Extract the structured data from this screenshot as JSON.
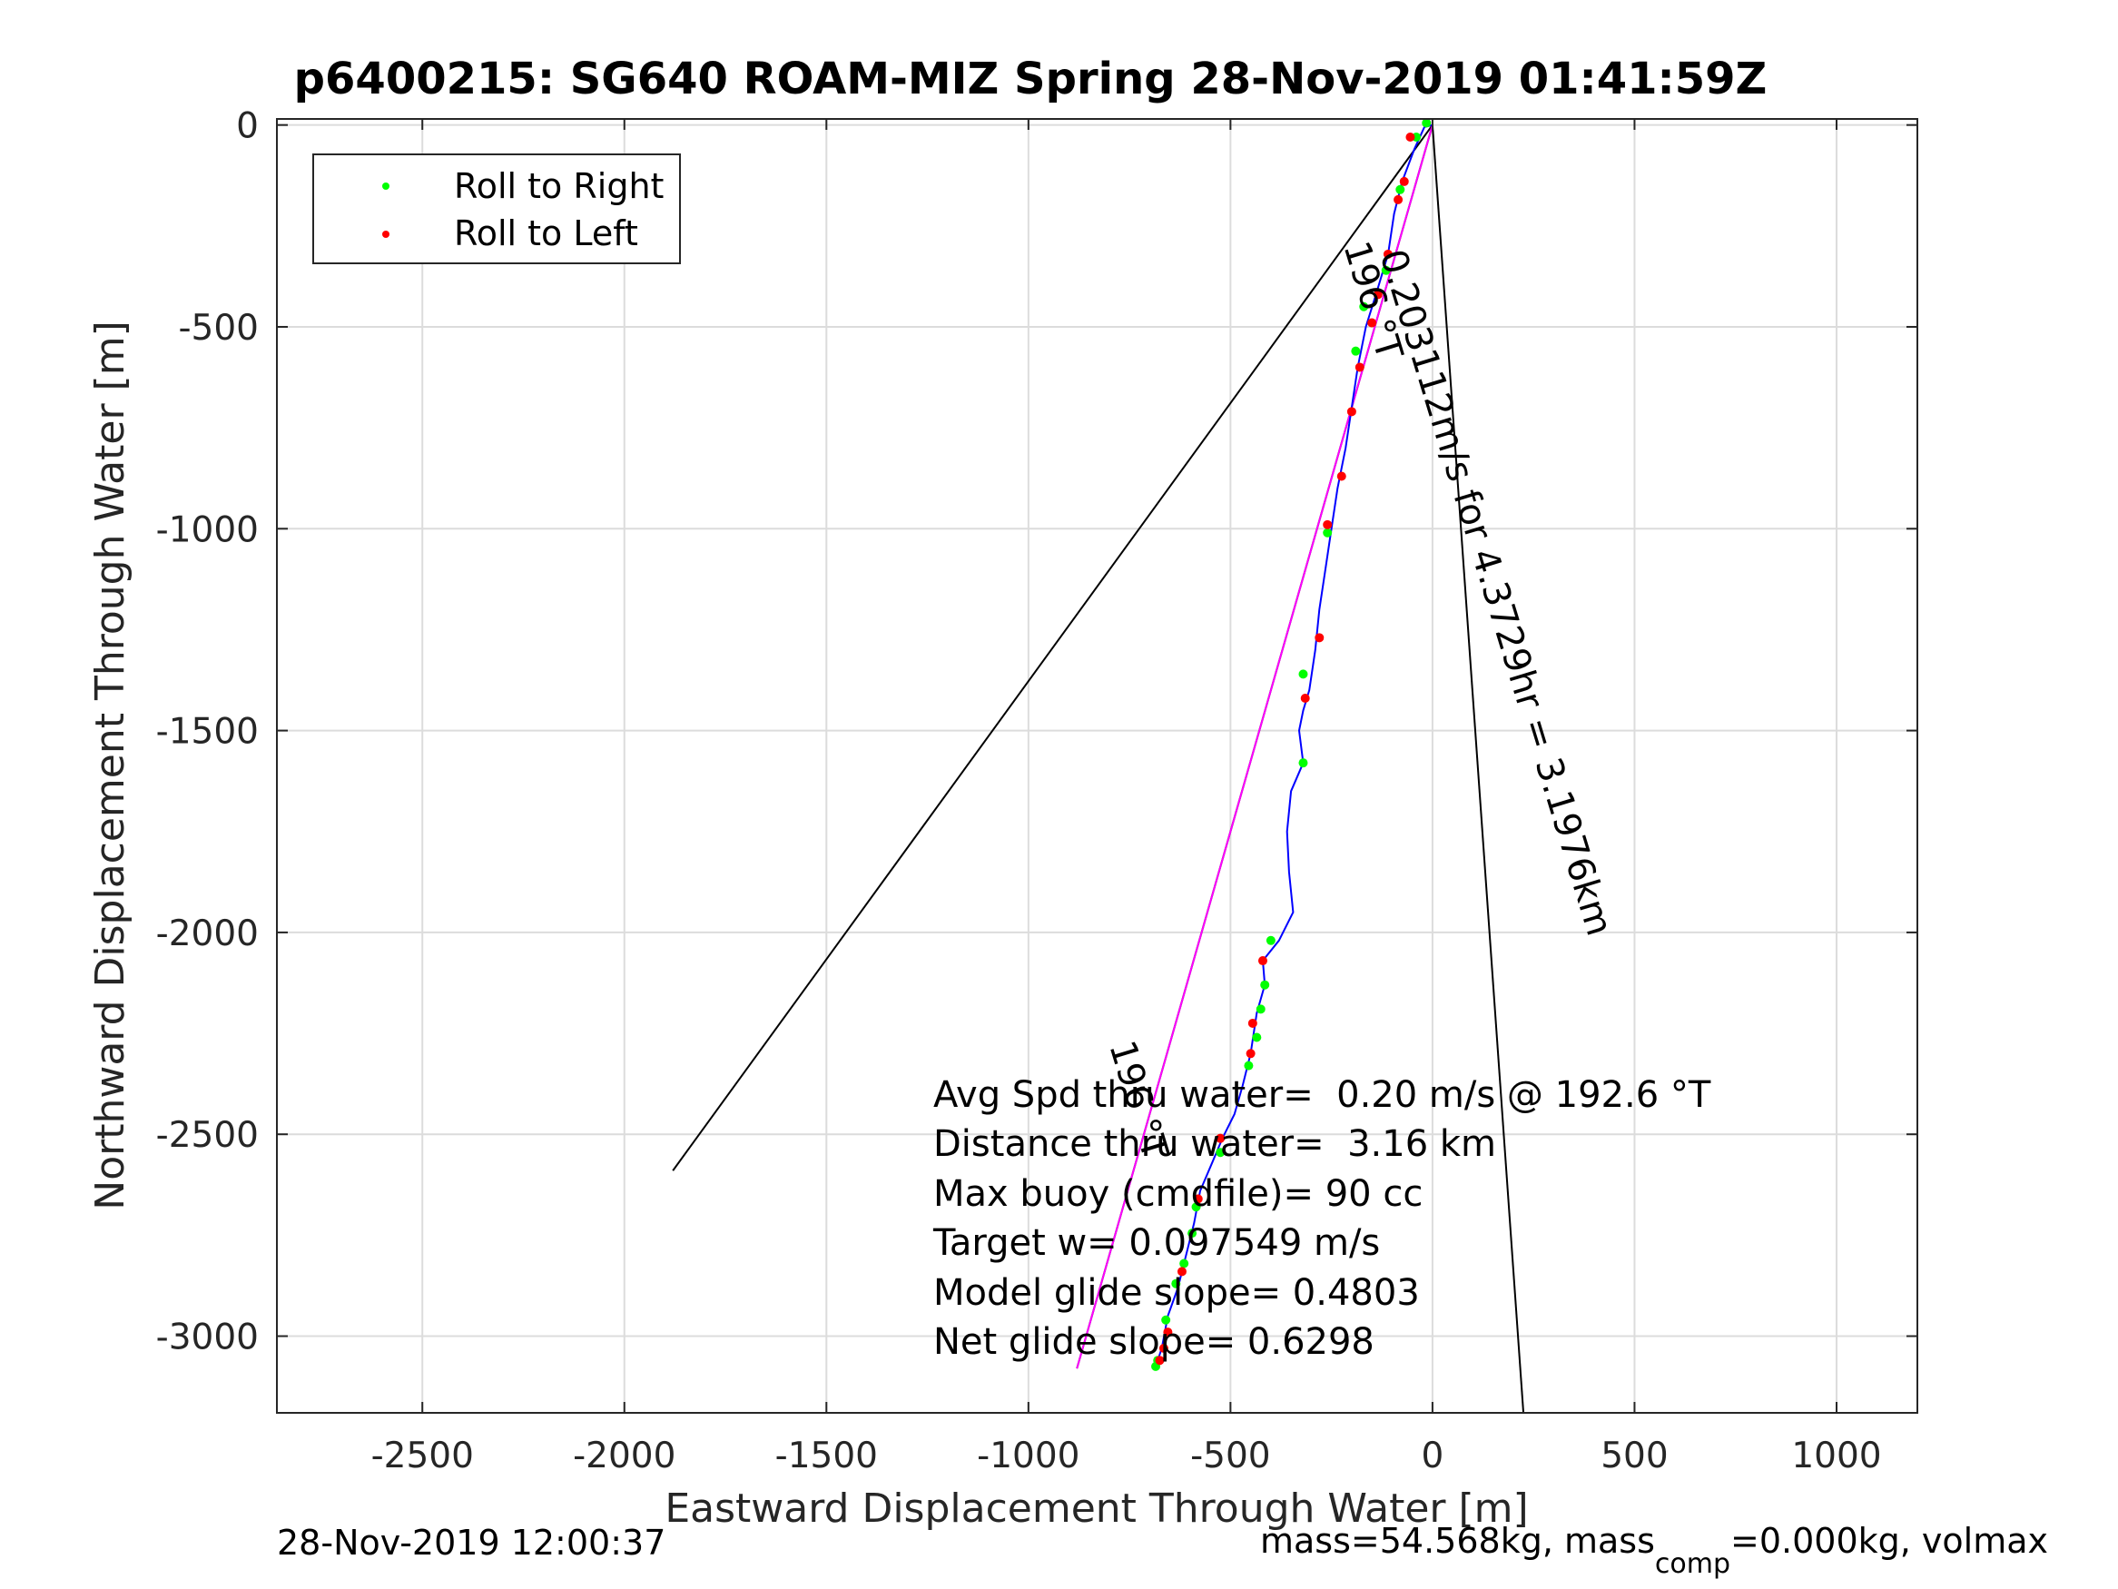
{
  "title": "p6400215: SG640 ROAM-MIZ Spring 28-Nov-2019 01:41:59Z",
  "footer_left": "28-Nov-2019 12:00:37",
  "footer_right_main": "mass=54.568kg, mass",
  "footer_right_sub": "comp",
  "footer_right_tail": "=0.000kg, volmax",
  "chart_data": {
    "type": "line",
    "xlabel": "Eastward Displacement Through Water [m]",
    "ylabel": "Northward Displacement Through Water [m]",
    "xlim": [
      -2860,
      1200
    ],
    "ylim": [
      -3190,
      15
    ],
    "xticks": [
      -2500,
      -2000,
      -1500,
      -1000,
      -500,
      0,
      500,
      1000
    ],
    "yticks": [
      0,
      -500,
      -1000,
      -1500,
      -2000,
      -2500,
      -3000
    ],
    "grid": true,
    "legend": {
      "placement": "top-left",
      "entries": [
        {
          "label": "Roll to Right",
          "color": "#00ff00"
        },
        {
          "label": "Roll to Left",
          "color": "#ff0000"
        }
      ]
    },
    "track_color": "#0000ff",
    "track": [
      [
        0,
        0
      ],
      [
        -20,
        -5
      ],
      [
        -45,
        -60
      ],
      [
        -75,
        -140
      ],
      [
        -95,
        -220
      ],
      [
        -110,
        -320
      ],
      [
        -140,
        -420
      ],
      [
        -165,
        -500
      ],
      [
        -185,
        -600
      ],
      [
        -200,
        -700
      ],
      [
        -215,
        -800
      ],
      [
        -235,
        -900
      ],
      [
        -250,
        -1000
      ],
      [
        -265,
        -1100
      ],
      [
        -280,
        -1200
      ],
      [
        -290,
        -1300
      ],
      [
        -305,
        -1400
      ],
      [
        -320,
        -1450
      ],
      [
        -330,
        -1500
      ],
      [
        -320,
        -1580
      ],
      [
        -350,
        -1650
      ],
      [
        -360,
        -1750
      ],
      [
        -355,
        -1850
      ],
      [
        -345,
        -1950
      ],
      [
        -380,
        -2020
      ],
      [
        -420,
        -2070
      ],
      [
        -415,
        -2130
      ],
      [
        -435,
        -2200
      ],
      [
        -450,
        -2300
      ],
      [
        -470,
        -2380
      ],
      [
        -490,
        -2450
      ],
      [
        -520,
        -2510
      ],
      [
        -545,
        -2570
      ],
      [
        -575,
        -2640
      ],
      [
        -590,
        -2720
      ],
      [
        -610,
        -2800
      ],
      [
        -630,
        -2880
      ],
      [
        -655,
        -2950
      ],
      [
        -670,
        -3030
      ],
      [
        -685,
        -3075
      ]
    ],
    "roll_right": [
      [
        -15,
        5
      ],
      [
        -40,
        -30
      ],
      [
        -80,
        -160
      ],
      [
        -115,
        -360
      ],
      [
        -170,
        -450
      ],
      [
        -190,
        -560
      ],
      [
        -260,
        -1010
      ],
      [
        -320,
        -1360
      ],
      [
        -320,
        -1580
      ],
      [
        -400,
        -2020
      ],
      [
        -415,
        -2130
      ],
      [
        -425,
        -2190
      ],
      [
        -435,
        -2260
      ],
      [
        -455,
        -2330
      ],
      [
        -525,
        -2545
      ],
      [
        -585,
        -2680
      ],
      [
        -595,
        -2745
      ],
      [
        -615,
        -2820
      ],
      [
        -635,
        -2870
      ],
      [
        -660,
        -2960
      ],
      [
        -680,
        -3060
      ],
      [
        -685,
        -3075
      ]
    ],
    "roll_left": [
      [
        -55,
        -30
      ],
      [
        -70,
        -140
      ],
      [
        -85,
        -185
      ],
      [
        -110,
        -320
      ],
      [
        -135,
        -420
      ],
      [
        -150,
        -490
      ],
      [
        -180,
        -600
      ],
      [
        -200,
        -710
      ],
      [
        -225,
        -870
      ],
      [
        -260,
        -990
      ],
      [
        -280,
        -1270
      ],
      [
        -315,
        -1420
      ],
      [
        -420,
        -2070
      ],
      [
        -445,
        -2225
      ],
      [
        -450,
        -2300
      ],
      [
        -525,
        -2510
      ],
      [
        -580,
        -2660
      ],
      [
        -620,
        -2840
      ],
      [
        -655,
        -2990
      ],
      [
        -665,
        -3030
      ],
      [
        -675,
        -3060
      ]
    ],
    "black_lines": [
      [
        [
          0,
          0
        ],
        [
          -1880,
          -2590
        ]
      ],
      [
        [
          0,
          0
        ],
        [
          225,
          -3190
        ]
      ],
      [
        [
          0,
          0
        ],
        [
          -880,
          -3080
        ]
      ]
    ],
    "magenta_line": [
      [
        0,
        0
      ],
      [
        -880,
        -3080
      ]
    ],
    "rotated_labels": [
      {
        "text": "0.203112m/s for 4.3729hr = 3.1976km",
        "x": -130,
        "y": -320,
        "angle": 73
      },
      {
        "text": "196 °T",
        "x": -220,
        "y": -300,
        "angle": 73
      },
      {
        "text": "196 °T",
        "x": -800,
        "y": -2280,
        "angle": 73
      }
    ],
    "annotations": [
      "Avg Spd thru water=  0.20 m/s @ 192.6 °T",
      "Distance thru water=  3.16 km",
      "Max buoy (cmdfile)= 90 cc",
      "Target w= 0.097549 m/s",
      "Model glide slope= 0.4803",
      "Net glide slope= 0.6298"
    ]
  }
}
